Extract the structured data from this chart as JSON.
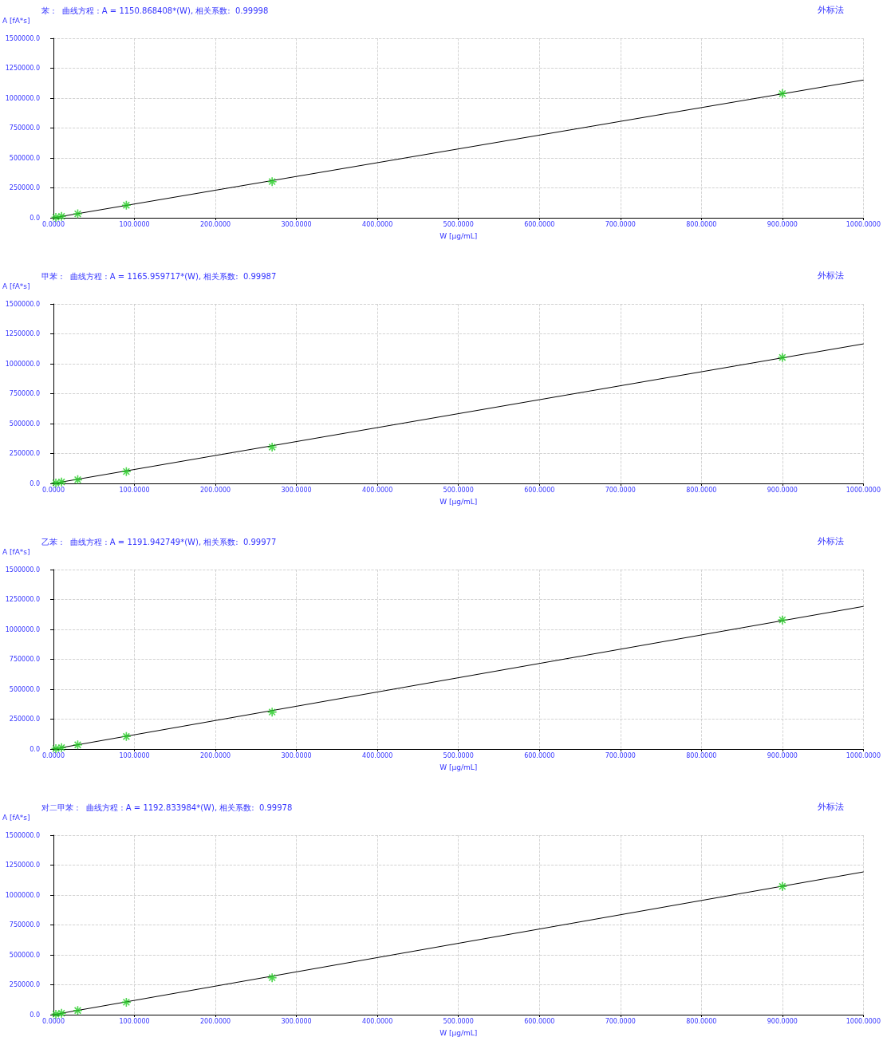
{
  "chart_data": [
    {
      "type": "scatter",
      "title": "苯 :   曲线方程 : A = 1150.868408*(W), 相关系数:  0.99998",
      "ylabel": "A [fA*s]",
      "xlabel": "W [μg/mL]",
      "annotations": [
        "外标法"
      ],
      "xlim": [
        0,
        1000
      ],
      "ylim": [
        0,
        1500000
      ],
      "xticks": [
        {
          "value": 0,
          "label": "0.0000"
        },
        {
          "value": 100,
          "label": "100.0000"
        },
        {
          "value": 200,
          "label": "200.0000"
        },
        {
          "value": 300,
          "label": "300.0000"
        },
        {
          "value": 400,
          "label": "400.0000"
        },
        {
          "value": 500,
          "label": "500.0000"
        },
        {
          "value": 600,
          "label": "600.0000"
        },
        {
          "value": 700,
          "label": "700.0000"
        },
        {
          "value": 800,
          "label": "800.0000"
        },
        {
          "value": 900,
          "label": "900.0000"
        },
        {
          "value": 1000,
          "label": "1000.0000"
        }
      ],
      "yticks": [
        {
          "value": 0,
          "label": "0.0"
        },
        {
          "value": 250000,
          "label": "250000.0"
        },
        {
          "value": 500000,
          "label": "500000.0"
        },
        {
          "value": 750000,
          "label": "750000.0"
        },
        {
          "value": 1000000,
          "label": "1000000.0"
        },
        {
          "value": 1250000,
          "label": "1250000.0"
        },
        {
          "value": 1500000,
          "label": "1500000.0"
        }
      ],
      "grid": true,
      "marker": "cross",
      "series": [
        {
          "type": "scatter",
          "color": "#22cc22",
          "x": [
            3,
            10,
            30,
            90,
            270,
            900
          ],
          "values": [
            4000,
            12000,
            33000,
            105000,
            302000,
            1038000
          ]
        },
        {
          "type": "line",
          "color": "#000000",
          "line_style": "solid",
          "marker": "none",
          "x": [
            0,
            1000
          ],
          "values": [
            0,
            1151000
          ]
        }
      ]
    },
    {
      "type": "scatter",
      "title": "甲苯 :   曲线方程 : A = 1165.959717*(W), 相关系数:  0.99987",
      "ylabel": "A [fA*s]",
      "xlabel": "W [μg/mL]",
      "annotations": [
        "外标法"
      ],
      "xlim": [
        0,
        1000
      ],
      "ylim": [
        0,
        1500000
      ],
      "xticks": [
        {
          "value": 0,
          "label": "0.0000"
        },
        {
          "value": 100,
          "label": "100.0000"
        },
        {
          "value": 200,
          "label": "200.0000"
        },
        {
          "value": 300,
          "label": "300.0000"
        },
        {
          "value": 400,
          "label": "400.0000"
        },
        {
          "value": 500,
          "label": "500.0000"
        },
        {
          "value": 600,
          "label": "600.0000"
        },
        {
          "value": 700,
          "label": "700.0000"
        },
        {
          "value": 800,
          "label": "800.0000"
        },
        {
          "value": 900,
          "label": "900.0000"
        },
        {
          "value": 1000,
          "label": "1000.0000"
        }
      ],
      "yticks": [
        {
          "value": 0,
          "label": "0.0"
        },
        {
          "value": 250000,
          "label": "250000.0"
        },
        {
          "value": 500000,
          "label": "500000.0"
        },
        {
          "value": 750000,
          "label": "750000.0"
        },
        {
          "value": 1000000,
          "label": "1000000.0"
        },
        {
          "value": 1250000,
          "label": "1250000.0"
        },
        {
          "value": 1500000,
          "label": "1500000.0"
        }
      ],
      "grid": true,
      "marker": "cross",
      "series": [
        {
          "type": "scatter",
          "color": "#22cc22",
          "x": [
            3,
            10,
            30,
            90,
            270,
            900
          ],
          "values": [
            4000,
            12000,
            31000,
            99000,
            303000,
            1053000
          ]
        },
        {
          "type": "line",
          "color": "#000000",
          "line_style": "solid",
          "marker": "none",
          "x": [
            0,
            1000
          ],
          "values": [
            0,
            1166000
          ]
        }
      ]
    },
    {
      "type": "scatter",
      "title": "乙苯 :   曲线方程 : A = 1191.942749*(W), 相关系数:  0.99977",
      "ylabel": "A [fA*s]",
      "xlabel": "W [μg/mL]",
      "annotations": [
        "外标法"
      ],
      "xlim": [
        0,
        1000
      ],
      "ylim": [
        0,
        1500000
      ],
      "xticks": [
        {
          "value": 0,
          "label": "0.0000"
        },
        {
          "value": 100,
          "label": "100.0000"
        },
        {
          "value": 200,
          "label": "200.0000"
        },
        {
          "value": 300,
          "label": "300.0000"
        },
        {
          "value": 400,
          "label": "400.0000"
        },
        {
          "value": 500,
          "label": "500.0000"
        },
        {
          "value": 600,
          "label": "600.0000"
        },
        {
          "value": 700,
          "label": "700.0000"
        },
        {
          "value": 800,
          "label": "800.0000"
        },
        {
          "value": 900,
          "label": "900.0000"
        },
        {
          "value": 1000,
          "label": "1000.0000"
        }
      ],
      "yticks": [
        {
          "value": 0,
          "label": "0.0"
        },
        {
          "value": 250000,
          "label": "250000.0"
        },
        {
          "value": 500000,
          "label": "500000.0"
        },
        {
          "value": 750000,
          "label": "750000.0"
        },
        {
          "value": 1000000,
          "label": "1000000.0"
        },
        {
          "value": 1250000,
          "label": "1250000.0"
        },
        {
          "value": 1500000,
          "label": "1500000.0"
        }
      ],
      "grid": true,
      "marker": "cross",
      "series": [
        {
          "type": "scatter",
          "color": "#22cc22",
          "x": [
            3,
            10,
            30,
            90,
            270,
            900
          ],
          "values": [
            4000,
            12000,
            35000,
            105000,
            309000,
            1079000
          ]
        },
        {
          "type": "line",
          "color": "#000000",
          "line_style": "solid",
          "marker": "none",
          "x": [
            0,
            1000
          ],
          "values": [
            0,
            1192000
          ]
        }
      ]
    },
    {
      "type": "scatter",
      "title": "对二甲苯 :   曲线方程 : A = 1192.833984*(W), 相关系数:  0.99978",
      "ylabel": "A [fA*s]",
      "xlabel": "W [μg/mL]",
      "annotations": [
        "外标法"
      ],
      "xlim": [
        0,
        1000
      ],
      "ylim": [
        0,
        1500000
      ],
      "xticks": [
        {
          "value": 0,
          "label": "0.0000"
        },
        {
          "value": 100,
          "label": "100.0000"
        },
        {
          "value": 200,
          "label": "200.0000"
        },
        {
          "value": 300,
          "label": "300.0000"
        },
        {
          "value": 400,
          "label": "400.0000"
        },
        {
          "value": 500,
          "label": "500.0000"
        },
        {
          "value": 600,
          "label": "600.0000"
        },
        {
          "value": 700,
          "label": "700.0000"
        },
        {
          "value": 800,
          "label": "800.0000"
        },
        {
          "value": 900,
          "label": "900.0000"
        },
        {
          "value": 1000,
          "label": "1000.0000"
        }
      ],
      "yticks": [
        {
          "value": 0,
          "label": "0.0"
        },
        {
          "value": 250000,
          "label": "250000.0"
        },
        {
          "value": 500000,
          "label": "500000.0"
        },
        {
          "value": 750000,
          "label": "750000.0"
        },
        {
          "value": 1000000,
          "label": "1000000.0"
        },
        {
          "value": 1250000,
          "label": "1250000.0"
        },
        {
          "value": 1500000,
          "label": "1500000.0"
        }
      ],
      "grid": true,
      "marker": "cross",
      "series": [
        {
          "type": "scatter",
          "color": "#22cc22",
          "x": [
            3,
            10,
            30,
            90,
            270,
            900
          ],
          "values": [
            4000,
            12000,
            35000,
            104000,
            309000,
            1072000
          ]
        },
        {
          "type": "line",
          "color": "#000000",
          "line_style": "solid",
          "marker": "none",
          "x": [
            0,
            1000
          ],
          "values": [
            0,
            1193000
          ]
        }
      ]
    }
  ]
}
